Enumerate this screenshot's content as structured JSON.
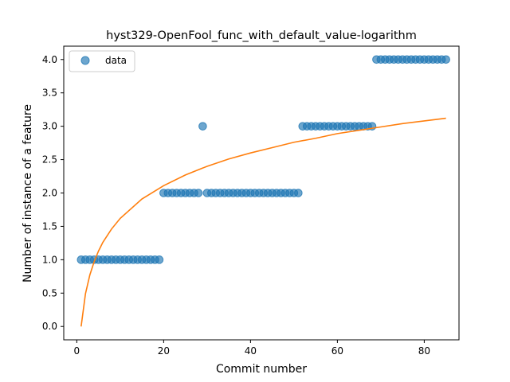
{
  "chart_data": {
    "type": "scatter",
    "title": "hyst329-OpenFool_func_with_default_value-logarithm",
    "xlabel": "Commit number",
    "ylabel": "Number of instance of a feature",
    "xlim": [
      -3,
      88
    ],
    "ylim": [
      -0.2,
      4.2
    ],
    "xticks": [
      0,
      20,
      40,
      60,
      80
    ],
    "yticks": [
      0.0,
      0.5,
      1.0,
      1.5,
      2.0,
      2.5,
      3.0,
      3.5,
      4.0
    ],
    "xtick_labels": [
      "0",
      "20",
      "40",
      "60",
      "80"
    ],
    "ytick_labels": [
      "0.0",
      "0.5",
      "1.0",
      "1.5",
      "2.0",
      "2.5",
      "3.0",
      "3.5",
      "4.0"
    ],
    "legend": {
      "placement": "top-left",
      "entries": [
        "data"
      ]
    },
    "series": [
      {
        "name": "data",
        "kind": "points",
        "color": "#1f77b4",
        "x": [
          1,
          2,
          3,
          4,
          5,
          6,
          7,
          8,
          9,
          10,
          11,
          12,
          13,
          14,
          15,
          16,
          17,
          18,
          19,
          20,
          21,
          22,
          23,
          24,
          25,
          26,
          27,
          28,
          29,
          30,
          31,
          32,
          33,
          34,
          35,
          36,
          37,
          38,
          39,
          40,
          41,
          42,
          43,
          44,
          45,
          46,
          47,
          48,
          49,
          50,
          51,
          52,
          53,
          54,
          55,
          56,
          57,
          58,
          59,
          60,
          61,
          62,
          63,
          64,
          65,
          66,
          67,
          68,
          69,
          70,
          71,
          72,
          73,
          74,
          75,
          76,
          77,
          78,
          79,
          80,
          81,
          82,
          83,
          84,
          85
        ],
        "y": [
          1,
          1,
          1,
          1,
          1,
          1,
          1,
          1,
          1,
          1,
          1,
          1,
          1,
          1,
          1,
          1,
          1,
          1,
          1,
          2,
          2,
          2,
          2,
          2,
          2,
          2,
          2,
          2,
          3,
          2,
          2,
          2,
          2,
          2,
          2,
          2,
          2,
          2,
          2,
          2,
          2,
          2,
          2,
          2,
          2,
          2,
          2,
          2,
          2,
          2,
          2,
          3,
          3,
          3,
          3,
          3,
          3,
          3,
          3,
          3,
          3,
          3,
          3,
          3,
          3,
          3,
          3,
          3,
          4,
          4,
          4,
          4,
          4,
          4,
          4,
          4,
          4,
          4,
          4,
          4,
          4,
          4,
          4,
          4,
          4
        ]
      },
      {
        "kind": "line",
        "color": "#ff7f0e",
        "x": [
          1,
          2,
          3,
          4,
          5,
          6,
          8,
          10,
          15,
          20,
          25,
          30,
          35,
          40,
          45,
          50,
          55,
          60,
          65,
          70,
          75,
          80,
          85
        ],
        "y": [
          0.0,
          0.49,
          0.77,
          0.97,
          1.13,
          1.26,
          1.46,
          1.62,
          1.91,
          2.11,
          2.27,
          2.4,
          2.51,
          2.6,
          2.68,
          2.76,
          2.82,
          2.89,
          2.94,
          2.99,
          3.04,
          3.08,
          3.12
        ]
      }
    ]
  }
}
